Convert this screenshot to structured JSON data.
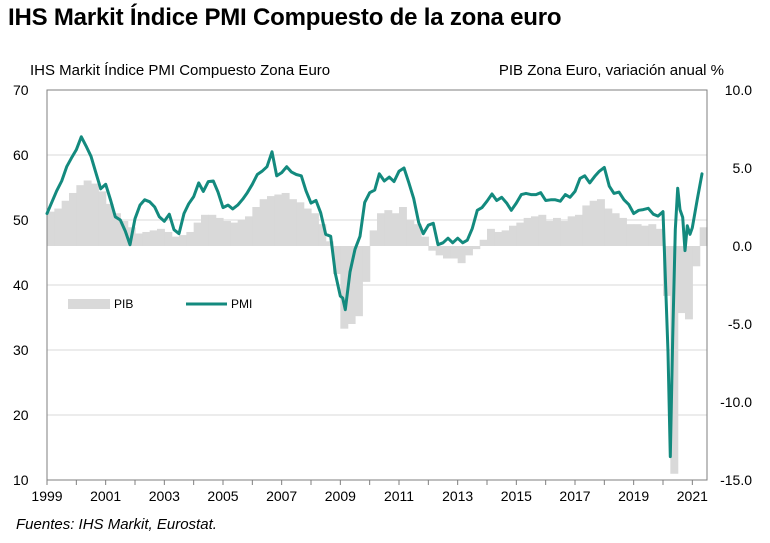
{
  "title": "IHS Markit Índice PMI Compuesto de la zona euro",
  "source": "Fuentes: IHS Markit, Eurostat.",
  "chart_data": {
    "type": "line",
    "left_axis_title": "IHS Markit Índice PMI Compuesto Zona Euro",
    "right_axis_title": "PIB Zona Euro, variación anual %",
    "left_ticks": [
      "70",
      "60",
      "50",
      "40",
      "30",
      "20",
      "10"
    ],
    "right_ticks": [
      "10.0",
      "5.0",
      "0.0",
      "-5.0",
      "-10.0",
      "-15.0"
    ],
    "x_ticks": [
      "1999",
      "2001",
      "2003",
      "2005",
      "2007",
      "2009",
      "2011",
      "2013",
      "2015",
      "2017",
      "2019",
      "2021"
    ],
    "ylim_left": [
      10,
      70
    ],
    "ylim_right": [
      -15,
      10
    ],
    "xlim": [
      1999,
      2021.5
    ],
    "grid": true,
    "legend": [
      {
        "name": "PIB",
        "color": "#d9d9d9"
      },
      {
        "name": "PMI",
        "color": "#138a7e"
      }
    ],
    "series": [
      {
        "name": "PIB",
        "kind": "bar",
        "axis": "right",
        "color": "#d9d9d9",
        "x": [
          1999.0,
          1999.25,
          1999.5,
          1999.75,
          2000.0,
          2000.25,
          2000.5,
          2000.75,
          2001.0,
          2001.25,
          2001.5,
          2001.75,
          2002.0,
          2002.25,
          2002.5,
          2002.75,
          2003.0,
          2003.25,
          2003.5,
          2003.75,
          2004.0,
          2004.25,
          2004.5,
          2004.75,
          2005.0,
          2005.25,
          2005.5,
          2005.75,
          2006.0,
          2006.25,
          2006.5,
          2006.75,
          2007.0,
          2007.25,
          2007.5,
          2007.75,
          2008.0,
          2008.25,
          2008.5,
          2008.75,
          2009.0,
          2009.25,
          2009.5,
          2009.75,
          2010.0,
          2010.25,
          2010.5,
          2010.75,
          2011.0,
          2011.25,
          2011.5,
          2011.75,
          2012.0,
          2012.25,
          2012.5,
          2012.75,
          2013.0,
          2013.25,
          2013.5,
          2013.75,
          2014.0,
          2014.25,
          2014.5,
          2014.75,
          2015.0,
          2015.25,
          2015.5,
          2015.75,
          2016.0,
          2016.25,
          2016.5,
          2016.75,
          2017.0,
          2017.25,
          2017.5,
          2017.75,
          2018.0,
          2018.25,
          2018.5,
          2018.75,
          2019.0,
          2019.25,
          2019.5,
          2019.75,
          2020.0,
          2020.25,
          2020.5,
          2020.75,
          2021.0,
          2021.25
        ],
        "values": [
          2.2,
          2.4,
          2.9,
          3.4,
          3.9,
          4.2,
          4.0,
          3.5,
          2.7,
          2.1,
          1.6,
          1.2,
          0.8,
          0.9,
          1.0,
          1.1,
          0.9,
          0.6,
          0.7,
          0.9,
          1.5,
          2.0,
          2.0,
          1.8,
          1.6,
          1.5,
          1.7,
          1.9,
          2.5,
          3.0,
          3.2,
          3.3,
          3.4,
          3.0,
          2.8,
          2.4,
          2.1,
          1.4,
          0.3,
          -1.8,
          -5.3,
          -5.0,
          -4.5,
          -2.3,
          1.0,
          2.1,
          2.3,
          2.1,
          2.5,
          1.7,
          1.4,
          0.6,
          -0.3,
          -0.6,
          -0.8,
          -0.8,
          -1.1,
          -0.6,
          -0.2,
          0.4,
          1.1,
          0.9,
          1.0,
          1.3,
          1.5,
          1.8,
          1.9,
          2.0,
          1.6,
          1.8,
          1.6,
          1.9,
          2.0,
          2.6,
          2.9,
          3.0,
          2.4,
          2.1,
          1.8,
          1.4,
          1.4,
          1.3,
          1.4,
          1.1,
          -3.2,
          -14.6,
          -4.3,
          -4.7,
          -1.3,
          1.2
        ]
      },
      {
        "name": "PMI",
        "kind": "line",
        "axis": "left",
        "color": "#138a7e",
        "x": [
          1999.0,
          1999.17,
          1999.33,
          1999.5,
          1999.67,
          1999.83,
          2000.0,
          2000.17,
          2000.33,
          2000.5,
          2000.67,
          2000.83,
          2001.0,
          2001.17,
          2001.33,
          2001.5,
          2001.67,
          2001.83,
          2002.0,
          2002.17,
          2002.33,
          2002.5,
          2002.67,
          2002.83,
          2003.0,
          2003.17,
          2003.33,
          2003.5,
          2003.67,
          2003.83,
          2004.0,
          2004.17,
          2004.33,
          2004.5,
          2004.67,
          2004.83,
          2005.0,
          2005.17,
          2005.33,
          2005.5,
          2005.67,
          2005.83,
          2006.0,
          2006.17,
          2006.33,
          2006.5,
          2006.67,
          2006.83,
          2007.0,
          2007.17,
          2007.33,
          2007.5,
          2007.67,
          2007.83,
          2008.0,
          2008.17,
          2008.33,
          2008.5,
          2008.67,
          2008.83,
          2009.0,
          2009.08,
          2009.17,
          2009.33,
          2009.5,
          2009.67,
          2009.83,
          2010.0,
          2010.17,
          2010.33,
          2010.5,
          2010.67,
          2010.83,
          2011.0,
          2011.17,
          2011.33,
          2011.5,
          2011.67,
          2011.83,
          2012.0,
          2012.17,
          2012.33,
          2012.5,
          2012.67,
          2012.83,
          2013.0,
          2013.17,
          2013.33,
          2013.5,
          2013.67,
          2013.83,
          2014.0,
          2014.17,
          2014.33,
          2014.5,
          2014.67,
          2014.83,
          2015.0,
          2015.17,
          2015.33,
          2015.5,
          2015.67,
          2015.83,
          2016.0,
          2016.17,
          2016.33,
          2016.5,
          2016.67,
          2016.83,
          2017.0,
          2017.17,
          2017.33,
          2017.5,
          2017.67,
          2017.83,
          2018.0,
          2018.17,
          2018.33,
          2018.5,
          2018.67,
          2018.83,
          2019.0,
          2019.17,
          2019.33,
          2019.5,
          2019.67,
          2019.83,
          2020.0,
          2020.17,
          2020.25,
          2020.33,
          2020.42,
          2020.5,
          2020.58,
          2020.67,
          2020.75,
          2020.83,
          2020.92,
          2021.0,
          2021.17,
          2021.33
        ],
        "values": [
          51.0,
          52.8,
          54.5,
          56.0,
          58.2,
          59.5,
          60.8,
          62.8,
          61.4,
          59.8,
          57.2,
          54.8,
          55.5,
          53.0,
          50.5,
          50.0,
          48.3,
          46.2,
          50.2,
          52.3,
          53.1,
          52.8,
          52.0,
          50.5,
          49.8,
          50.9,
          48.5,
          47.9,
          51.0,
          52.5,
          53.6,
          55.7,
          54.4,
          55.9,
          56.0,
          54.3,
          51.9,
          52.3,
          51.7,
          52.3,
          53.2,
          54.2,
          55.5,
          57.0,
          57.5,
          58.2,
          60.5,
          56.8,
          57.3,
          58.2,
          57.4,
          57.0,
          56.8,
          54.5,
          52.6,
          53.0,
          51.1,
          47.8,
          47.5,
          41.8,
          38.3,
          38.0,
          36.2,
          42.0,
          45.5,
          47.5,
          52.7,
          54.2,
          54.6,
          57.1,
          56.0,
          56.6,
          55.9,
          57.5,
          58.0,
          55.8,
          53.3,
          49.6,
          47.9,
          49.2,
          49.5,
          46.2,
          46.5,
          47.2,
          46.5,
          47.2,
          46.5,
          46.9,
          48.7,
          51.5,
          51.9,
          52.9,
          54.0,
          53.0,
          53.5,
          52.6,
          51.5,
          52.6,
          53.9,
          54.1,
          53.9,
          53.9,
          54.2,
          53.0,
          53.1,
          53.1,
          52.9,
          53.9,
          53.5,
          54.4,
          56.4,
          56.8,
          55.7,
          56.7,
          57.5,
          58.1,
          55.2,
          54.1,
          54.3,
          53.1,
          52.4,
          51.0,
          51.5,
          51.6,
          51.8,
          50.9,
          50.6,
          51.3,
          29.7,
          13.6,
          31.9,
          48.5,
          54.9,
          51.6,
          50.4,
          45.3,
          49.1,
          47.8,
          48.8,
          53.2,
          57.1
        ]
      }
    ]
  }
}
